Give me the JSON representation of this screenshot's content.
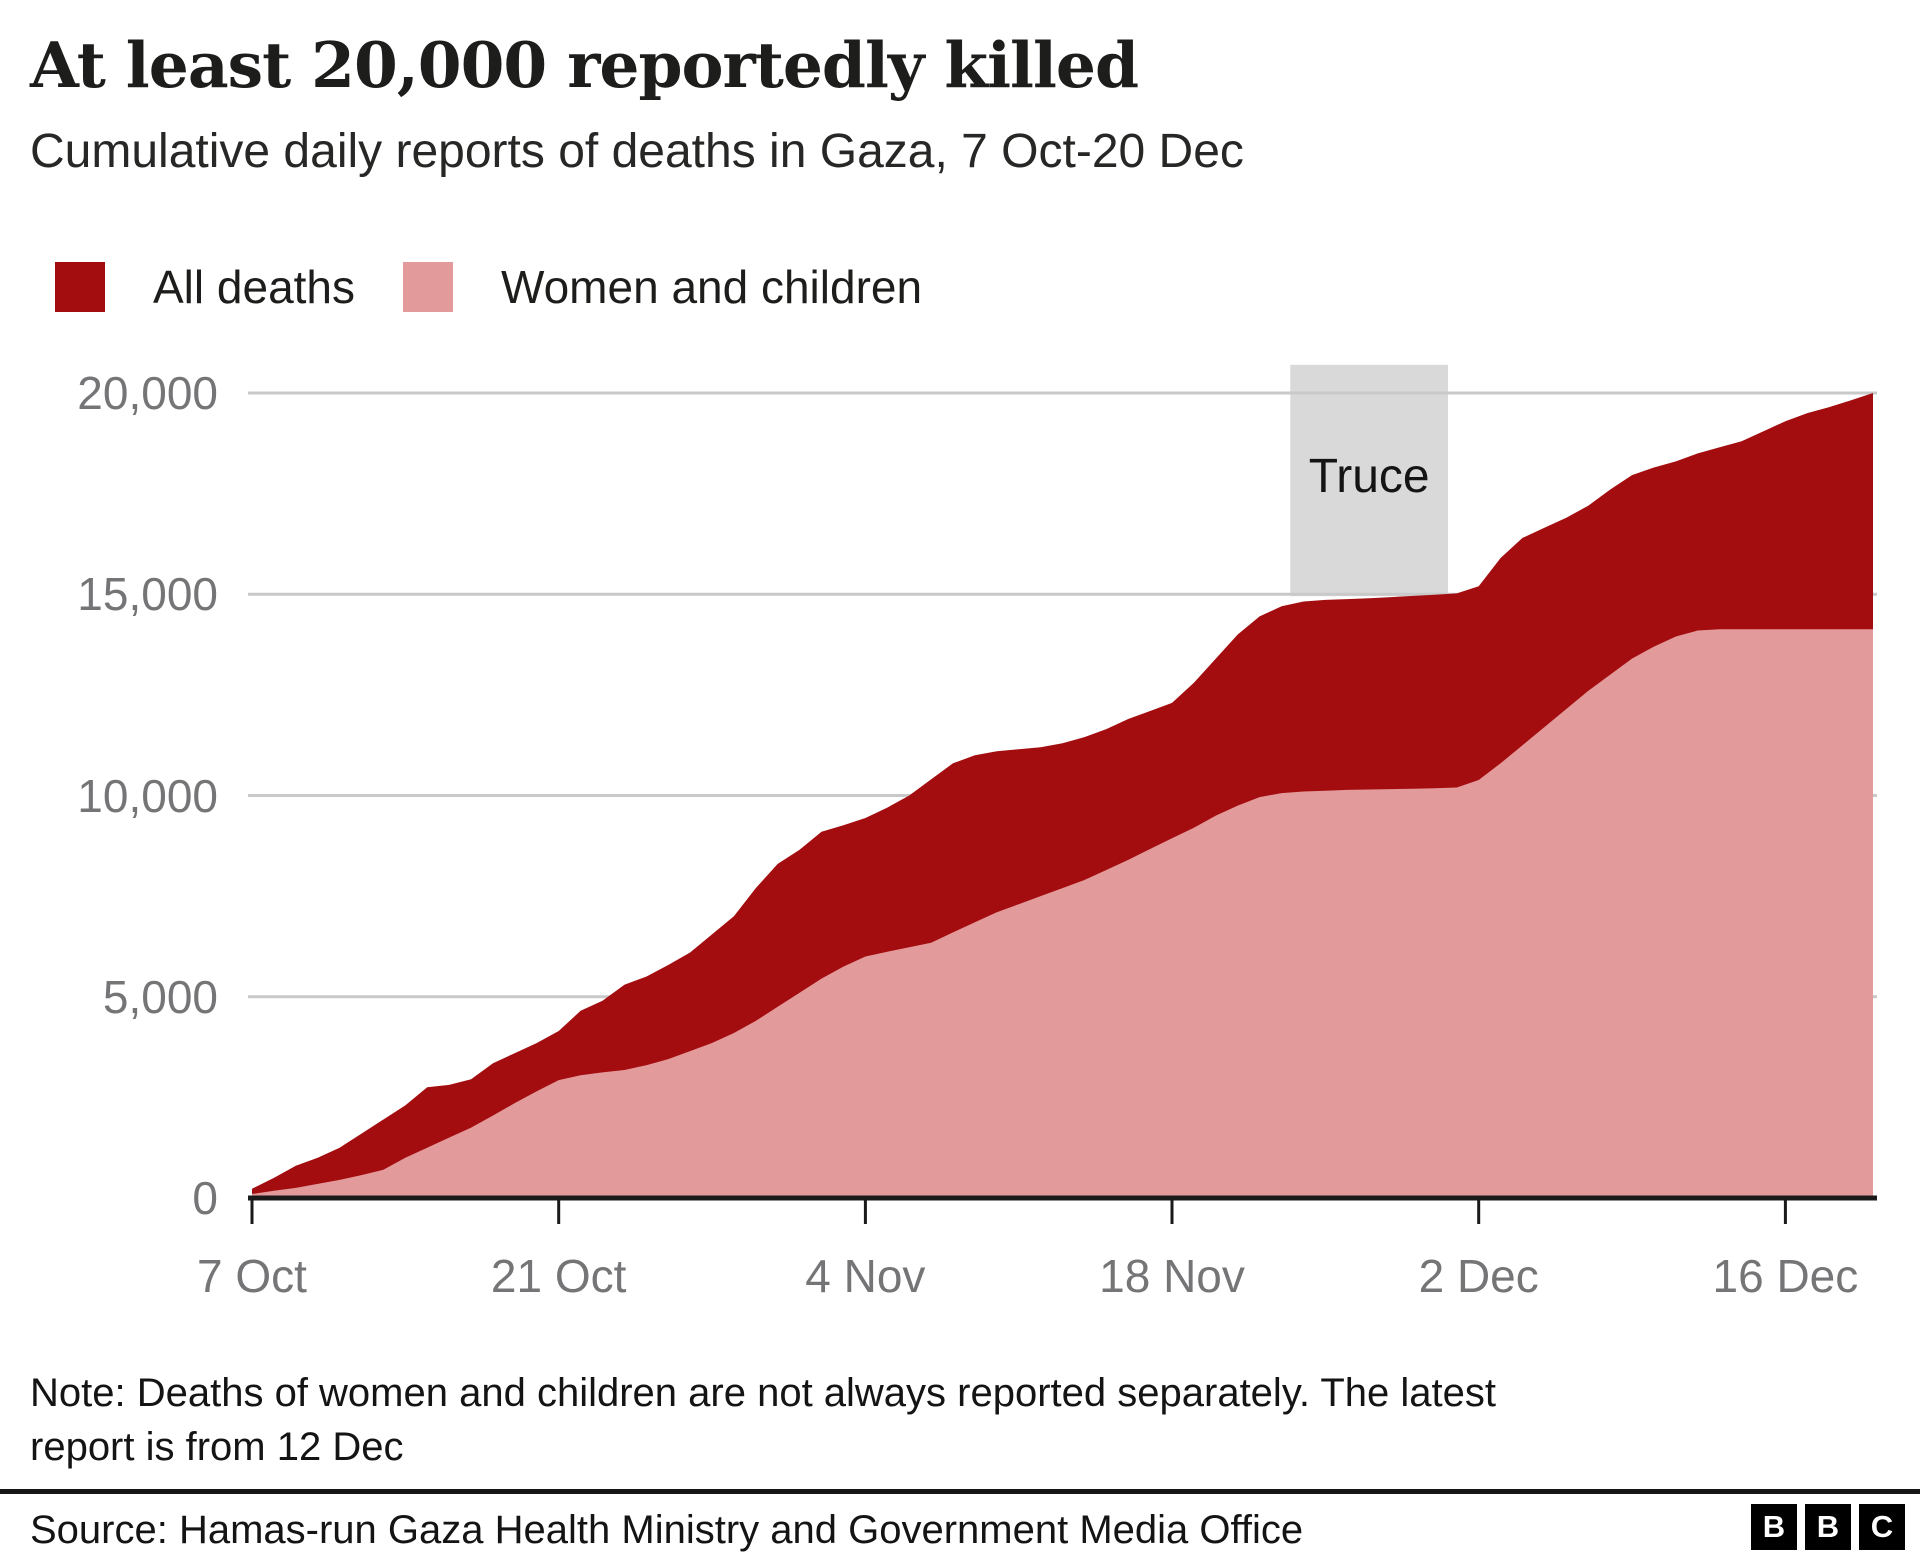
{
  "chart_data": {
    "type": "area",
    "title": "At least 20,000 reportedly killed",
    "subtitle": "Cumulative daily reports of deaths in Gaza, 7 Oct-20 Dec",
    "legend": [
      {
        "label": "All deaths",
        "color": "#a40d0f"
      },
      {
        "label": "Women and children",
        "color": "#e29a9b"
      }
    ],
    "grid": "horizontal",
    "legend_position": "top",
    "x_axis": {
      "unit": "days since 7 Oct 2023",
      "xlim": [
        0,
        74
      ],
      "ticks": [
        {
          "day": 0,
          "label": "7 Oct"
        },
        {
          "day": 14,
          "label": "21 Oct"
        },
        {
          "day": 28,
          "label": "4 Nov"
        },
        {
          "day": 42,
          "label": "18 Nov"
        },
        {
          "day": 56,
          "label": "2 Dec"
        },
        {
          "day": 70,
          "label": "16 Dec"
        }
      ]
    },
    "y_axis": {
      "ylim": [
        0,
        20000
      ],
      "ticks": [
        {
          "value": 0,
          "label": "0"
        },
        {
          "value": 5000,
          "label": "5,000"
        },
        {
          "value": 10000,
          "label": "10,000"
        },
        {
          "value": 15000,
          "label": "15,000"
        },
        {
          "value": 20000,
          "label": "20,000"
        }
      ]
    },
    "truce": {
      "label": "Truce",
      "start_day": 47.4,
      "end_day": 54.6,
      "top_value": 20700,
      "bottom_value": 14950,
      "color": "#d9d9d9"
    },
    "series": [
      {
        "name": "All deaths",
        "color": "#a40d0f",
        "points": [
          [
            0,
            230
          ],
          [
            1,
            500
          ],
          [
            2,
            800
          ],
          [
            3,
            1000
          ],
          [
            4,
            1250
          ],
          [
            5,
            1600
          ],
          [
            6,
            1950
          ],
          [
            7,
            2300
          ],
          [
            8,
            2750
          ],
          [
            9,
            2810
          ],
          [
            10,
            2950
          ],
          [
            11,
            3350
          ],
          [
            12,
            3600
          ],
          [
            13,
            3850
          ],
          [
            14,
            4150
          ],
          [
            15,
            4650
          ],
          [
            16,
            4900
          ],
          [
            17,
            5300
          ],
          [
            18,
            5500
          ],
          [
            19,
            5790
          ],
          [
            20,
            6100
          ],
          [
            21,
            6550
          ],
          [
            22,
            7000
          ],
          [
            23,
            7700
          ],
          [
            24,
            8300
          ],
          [
            25,
            8650
          ],
          [
            26,
            9100
          ],
          [
            27,
            9260
          ],
          [
            28,
            9440
          ],
          [
            29,
            9700
          ],
          [
            30,
            10000
          ],
          [
            31,
            10400
          ],
          [
            32,
            10800
          ],
          [
            33,
            11000
          ],
          [
            34,
            11100
          ],
          [
            35,
            11150
          ],
          [
            36,
            11200
          ],
          [
            37,
            11300
          ],
          [
            38,
            11450
          ],
          [
            39,
            11650
          ],
          [
            40,
            11900
          ],
          [
            41,
            12100
          ],
          [
            42,
            12300
          ],
          [
            43,
            12800
          ],
          [
            44,
            13400
          ],
          [
            45,
            14000
          ],
          [
            46,
            14450
          ],
          [
            47,
            14700
          ],
          [
            48,
            14820
          ],
          [
            49,
            14860
          ],
          [
            50,
            14880
          ],
          [
            51,
            14900
          ],
          [
            52,
            14930
          ],
          [
            53,
            14960
          ],
          [
            54,
            14990
          ],
          [
            55,
            15020
          ],
          [
            56,
            15200
          ],
          [
            57,
            15900
          ],
          [
            58,
            16400
          ],
          [
            59,
            16650
          ],
          [
            60,
            16900
          ],
          [
            61,
            17200
          ],
          [
            62,
            17600
          ],
          [
            63,
            17960
          ],
          [
            64,
            18150
          ],
          [
            65,
            18300
          ],
          [
            66,
            18500
          ],
          [
            67,
            18650
          ],
          [
            68,
            18800
          ],
          [
            69,
            19050
          ],
          [
            70,
            19300
          ],
          [
            71,
            19500
          ],
          [
            72,
            19650
          ],
          [
            73,
            19820
          ],
          [
            74,
            20000
          ]
        ]
      },
      {
        "name": "Women and children",
        "color": "#e29a9b",
        "points": [
          [
            0,
            100
          ],
          [
            1,
            180
          ],
          [
            2,
            250
          ],
          [
            3,
            350
          ],
          [
            4,
            450
          ],
          [
            5,
            570
          ],
          [
            6,
            700
          ],
          [
            7,
            1000
          ],
          [
            8,
            1250
          ],
          [
            9,
            1500
          ],
          [
            10,
            1750
          ],
          [
            11,
            2050
          ],
          [
            12,
            2360
          ],
          [
            13,
            2650
          ],
          [
            14,
            2930
          ],
          [
            15,
            3050
          ],
          [
            16,
            3120
          ],
          [
            17,
            3180
          ],
          [
            18,
            3300
          ],
          [
            19,
            3450
          ],
          [
            20,
            3650
          ],
          [
            21,
            3850
          ],
          [
            22,
            4100
          ],
          [
            23,
            4400
          ],
          [
            24,
            4750
          ],
          [
            25,
            5100
          ],
          [
            26,
            5450
          ],
          [
            27,
            5750
          ],
          [
            28,
            6000
          ],
          [
            29,
            6120
          ],
          [
            30,
            6230
          ],
          [
            31,
            6340
          ],
          [
            32,
            6600
          ],
          [
            33,
            6850
          ],
          [
            34,
            7100
          ],
          [
            35,
            7300
          ],
          [
            36,
            7500
          ],
          [
            37,
            7700
          ],
          [
            38,
            7900
          ],
          [
            39,
            8150
          ],
          [
            40,
            8400
          ],
          [
            41,
            8670
          ],
          [
            42,
            8940
          ],
          [
            43,
            9200
          ],
          [
            44,
            9500
          ],
          [
            45,
            9750
          ],
          [
            46,
            9960
          ],
          [
            47,
            10060
          ],
          [
            48,
            10100
          ],
          [
            49,
            10120
          ],
          [
            50,
            10140
          ],
          [
            51,
            10150
          ],
          [
            52,
            10160
          ],
          [
            53,
            10170
          ],
          [
            54,
            10180
          ],
          [
            55,
            10200
          ],
          [
            56,
            10385
          ],
          [
            57,
            10800
          ],
          [
            58,
            11250
          ],
          [
            59,
            11700
          ],
          [
            60,
            12150
          ],
          [
            61,
            12600
          ],
          [
            62,
            13000
          ],
          [
            63,
            13400
          ],
          [
            64,
            13700
          ],
          [
            65,
            13950
          ],
          [
            66,
            14100
          ],
          [
            67,
            14130
          ],
          [
            68,
            14130
          ],
          [
            69,
            14130
          ],
          [
            70,
            14130
          ],
          [
            71,
            14130
          ],
          [
            72,
            14130
          ],
          [
            73,
            14130
          ],
          [
            74,
            14130
          ]
        ]
      }
    ]
  },
  "note": {
    "line1": "Note: Deaths of women and children are not always reported separately. The latest",
    "line2": "report is from 12 Dec"
  },
  "source": {
    "text": "Source: Hamas-run Gaza Health Ministry and Government Media Office"
  },
  "logo": {
    "letters": [
      "B",
      "B",
      "C"
    ]
  }
}
